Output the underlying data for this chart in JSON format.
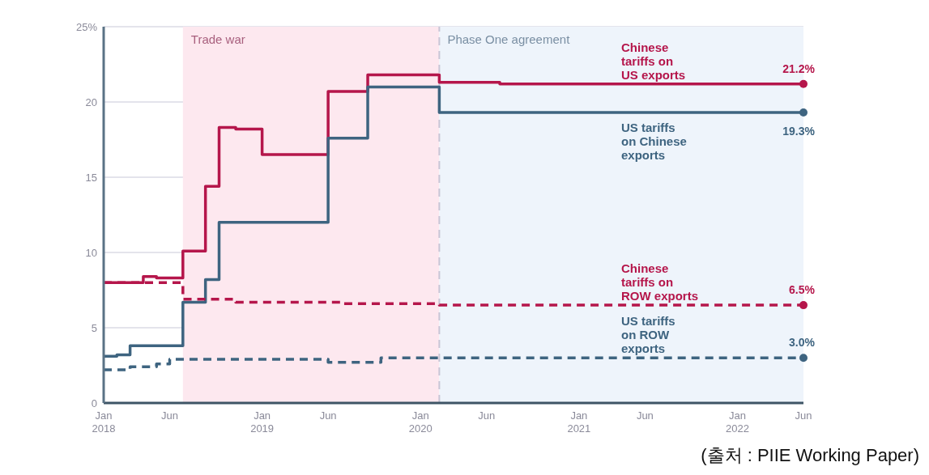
{
  "chart_data": {
    "type": "step",
    "xlim": [
      "2018-01",
      "2022-06"
    ],
    "xticks": [
      {
        "value": "2018-01",
        "label": "Jan 2018"
      },
      {
        "value": "2018-06",
        "label": "Jun"
      },
      {
        "value": "2019-01",
        "label": "Jan 2019"
      },
      {
        "value": "2019-06",
        "label": "Jun"
      },
      {
        "value": "2020-01",
        "label": "Jan 2020"
      },
      {
        "value": "2020-06",
        "label": "Jun"
      },
      {
        "value": "2021-01",
        "label": "Jan 2021"
      },
      {
        "value": "2021-06",
        "label": "Jun"
      },
      {
        "value": "2022-01",
        "label": "Jan 2022"
      },
      {
        "value": "2022-06",
        "label": "Jun"
      }
    ],
    "ylim": [
      0,
      25
    ],
    "yticks": [
      0,
      5,
      10,
      15,
      20,
      {
        "value": 25,
        "label": "25%"
      }
    ],
    "grid": "y",
    "series": [
      {
        "name": "Chinese tariffs on US exports",
        "color": "#b5164b",
        "line_style": "solid",
        "x": [
          "2018-01",
          "2018-04",
          "2018-05",
          "2018-07",
          "2018-08-23",
          "2018-09-24",
          "2018-11",
          "2019-01",
          "2019-06",
          "2019-09",
          "2020-02-14",
          "2020-07",
          "2022-06"
        ],
        "values": [
          8.0,
          8.4,
          8.3,
          10.1,
          14.4,
          18.3,
          18.2,
          16.5,
          20.7,
          21.8,
          21.3,
          21.2,
          21.2
        ],
        "value_labels": [
          null,
          null,
          null,
          null,
          null,
          null,
          null,
          null,
          null,
          null,
          null,
          null,
          "21.2%"
        ]
      },
      {
        "name": "US tariffs on Chinese exports",
        "color": "#3e6480",
        "line_style": "solid",
        "x": [
          "2018-01",
          "2018-02",
          "2018-03",
          "2018-07",
          "2018-08-23",
          "2018-09-24",
          "2019-06",
          "2019-09",
          "2020-02-14",
          "2022-06"
        ],
        "values": [
          3.1,
          3.2,
          3.8,
          6.7,
          8.2,
          12.0,
          17.6,
          21.0,
          19.3,
          19.3
        ],
        "value_labels": [
          null,
          null,
          null,
          null,
          null,
          null,
          null,
          null,
          null,
          "19.3%"
        ]
      },
      {
        "name": "Chinese tariffs on ROW exports",
        "color": "#b5164b",
        "line_style": "dashed",
        "x": [
          "2018-01",
          "2018-07",
          "2018-11",
          "2019-07",
          "2020-02-14",
          "2022-06"
        ],
        "values": [
          8.0,
          6.9,
          6.7,
          6.6,
          6.5,
          6.5
        ],
        "value_labels": [
          null,
          null,
          null,
          null,
          null,
          "6.5%"
        ]
      },
      {
        "name": "US tariffs on ROW exports",
        "color": "#3e6480",
        "line_style": "dashed",
        "x": [
          "2018-01",
          "2018-03",
          "2018-05",
          "2018-06",
          "2019-06",
          "2019-10",
          "2022-06"
        ],
        "values": [
          2.2,
          2.4,
          2.6,
          2.9,
          2.7,
          3.0,
          3.0
        ],
        "value_labels": [
          null,
          null,
          null,
          null,
          null,
          null,
          "3.0%"
        ]
      }
    ],
    "bands": [
      {
        "axis": "x",
        "from": "2018-07",
        "to": "2020-02-14",
        "label": "Trade war",
        "color": "#fde8ef"
      },
      {
        "axis": "x",
        "from": "2020-02-14",
        "to": "2022-06",
        "label": "Phase One agreement",
        "color": "#eef4fb"
      }
    ],
    "ref_lines": [
      {
        "axis": "x",
        "value": "2020-02-14",
        "label": null,
        "color": "#c9c6d6",
        "line_style": "dashed"
      }
    ],
    "annotations": [
      "(출처 : PIIE Working Paper)"
    ]
  }
}
